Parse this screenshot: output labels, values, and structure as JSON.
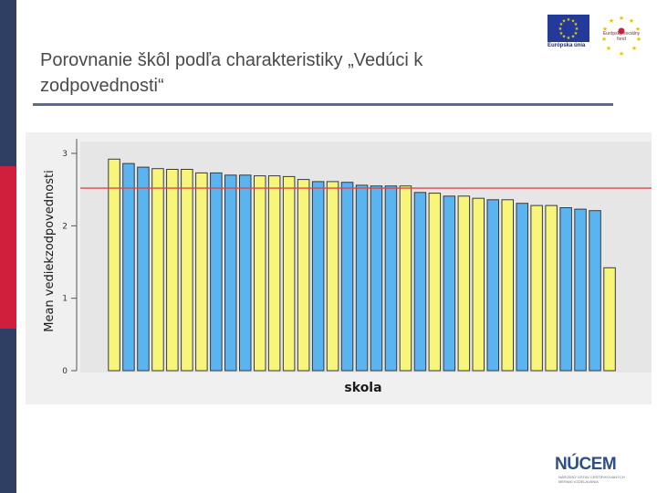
{
  "slide": {
    "title": "Porovnanie škôl podľa charakteristiky „Vedúci k zodpovednosti“"
  },
  "logos": {
    "eu_caption": "Európska únia",
    "esf_caption": "Európsky sociálny fond",
    "nucem_name": "NÚCEM",
    "nucem_subtitle": "NÁRODNÝ ÚSTAV CERTIFIKOVANÝCH MERANÍ VZDELÁVANIA"
  },
  "colors": {
    "bar_yellow": "#f7f57a",
    "bar_blue": "#5ab4f0",
    "reference_line": "#e04848",
    "sidebar_navy": "#2f3f63",
    "sidebar_red": "#cf1f3c"
  },
  "chart_data": {
    "type": "bar",
    "xlabel": "skola",
    "ylabel": "Mean vediekzodpovednosti",
    "ylim": [
      0,
      3.2
    ],
    "yticks": [
      0,
      1,
      2,
      3
    ],
    "reference_line": 2.52,
    "grid": false,
    "values": [
      2.92,
      2.86,
      2.81,
      2.79,
      2.78,
      2.78,
      2.73,
      2.73,
      2.7,
      2.7,
      2.69,
      2.69,
      2.68,
      2.64,
      2.61,
      2.61,
      2.6,
      2.56,
      2.55,
      2.55,
      2.55,
      2.46,
      2.45,
      2.41,
      2.41,
      2.38,
      2.36,
      2.36,
      2.31,
      2.28,
      2.28,
      2.25,
      2.23,
      2.21,
      1.42
    ],
    "bar_colors": [
      "yellow",
      "blue",
      "blue",
      "yellow",
      "yellow",
      "yellow",
      "yellow",
      "blue",
      "blue",
      "blue",
      "yellow",
      "yellow",
      "yellow",
      "yellow",
      "blue",
      "yellow",
      "blue",
      "blue",
      "blue",
      "blue",
      "yellow",
      "blue",
      "yellow",
      "blue",
      "yellow",
      "yellow",
      "blue",
      "yellow",
      "blue",
      "yellow",
      "yellow",
      "blue",
      "blue",
      "blue",
      "yellow"
    ]
  }
}
